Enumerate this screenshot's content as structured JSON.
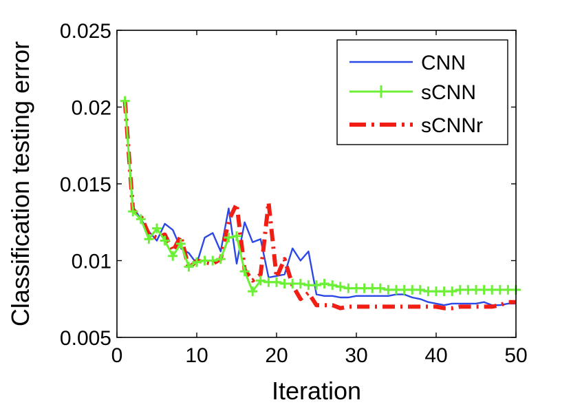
{
  "chart_data": {
    "type": "line",
    "title": "",
    "xlabel": "Iteration",
    "ylabel": "Classification testing error",
    "xlim": [
      0,
      50
    ],
    "ylim": [
      0.005,
      0.025
    ],
    "xticks": [
      0,
      10,
      20,
      30,
      40,
      50
    ],
    "xtick_labels": [
      "0",
      "10",
      "20",
      "30",
      "40",
      "50"
    ],
    "yticks": [
      0.005,
      0.01,
      0.015,
      0.02,
      0.025
    ],
    "ytick_labels": [
      "0.005",
      "0.01",
      "0.015",
      "0.02",
      "0.025"
    ],
    "grid": false,
    "legend_position": "top-right",
    "x": [
      1,
      2,
      3,
      4,
      5,
      6,
      7,
      8,
      9,
      10,
      11,
      12,
      13,
      14,
      15,
      16,
      17,
      18,
      19,
      20,
      21,
      22,
      23,
      24,
      25,
      26,
      27,
      28,
      29,
      30,
      31,
      32,
      33,
      34,
      35,
      36,
      37,
      38,
      39,
      40,
      41,
      42,
      43,
      44,
      45,
      46,
      47,
      48,
      49,
      50
    ],
    "series": [
      {
        "name": "CNN",
        "color": "#2b47e6",
        "style": "solid",
        "values": [
          0.0204,
          0.0135,
          0.0127,
          0.0119,
          0.0113,
          0.0124,
          0.012,
          0.0108,
          0.0105,
          0.0098,
          0.0115,
          0.0118,
          0.0106,
          0.0134,
          0.0098,
          0.0125,
          0.0112,
          0.0114,
          0.0089,
          0.009,
          0.0091,
          0.0108,
          0.01,
          0.0106,
          0.0078,
          0.0077,
          0.0077,
          0.0076,
          0.0076,
          0.0077,
          0.0077,
          0.0077,
          0.0077,
          0.0077,
          0.0078,
          0.0078,
          0.0076,
          0.0075,
          0.0073,
          0.0072,
          0.0071,
          0.0072,
          0.0072,
          0.0072,
          0.0072,
          0.0073,
          0.0071,
          0.0071,
          0.0072,
          0.0072
        ]
      },
      {
        "name": "sCNN",
        "color": "#6bf036",
        "style": "solid-plus-markers",
        "values": [
          0.0204,
          0.0132,
          0.0127,
          0.0114,
          0.0121,
          0.0113,
          0.0103,
          0.0111,
          0.0096,
          0.0099,
          0.01,
          0.01,
          0.0101,
          0.0115,
          0.0116,
          0.0093,
          0.008,
          0.0087,
          0.0086,
          0.0086,
          0.0085,
          0.0085,
          0.0085,
          0.0084,
          0.0084,
          0.0085,
          0.0084,
          0.0083,
          0.0082,
          0.0082,
          0.0082,
          0.0082,
          0.0082,
          0.0081,
          0.0081,
          0.0081,
          0.0081,
          0.0081,
          0.008,
          0.008,
          0.008,
          0.008,
          0.0081,
          0.0081,
          0.0081,
          0.0081,
          0.0081,
          0.0081,
          0.0081,
          0.0081
        ]
      },
      {
        "name": "sCNNr",
        "color": "#f01e14",
        "style": "dash-dot",
        "values": [
          0.0204,
          0.0133,
          0.0129,
          0.0117,
          0.0115,
          0.0117,
          0.0106,
          0.0116,
          0.0095,
          0.01,
          0.0099,
          0.0098,
          0.0101,
          0.0126,
          0.0137,
          0.0094,
          0.0087,
          0.0091,
          0.0138,
          0.0089,
          0.0101,
          0.0084,
          0.0075,
          0.0079,
          0.0071,
          0.0071,
          0.0071,
          0.0069,
          0.007,
          0.007,
          0.007,
          0.007,
          0.007,
          0.007,
          0.007,
          0.007,
          0.007,
          0.007,
          0.007,
          0.007,
          0.0069,
          0.0069,
          0.007,
          0.007,
          0.007,
          0.007,
          0.007,
          0.0071,
          0.0073,
          0.0073
        ]
      }
    ]
  }
}
